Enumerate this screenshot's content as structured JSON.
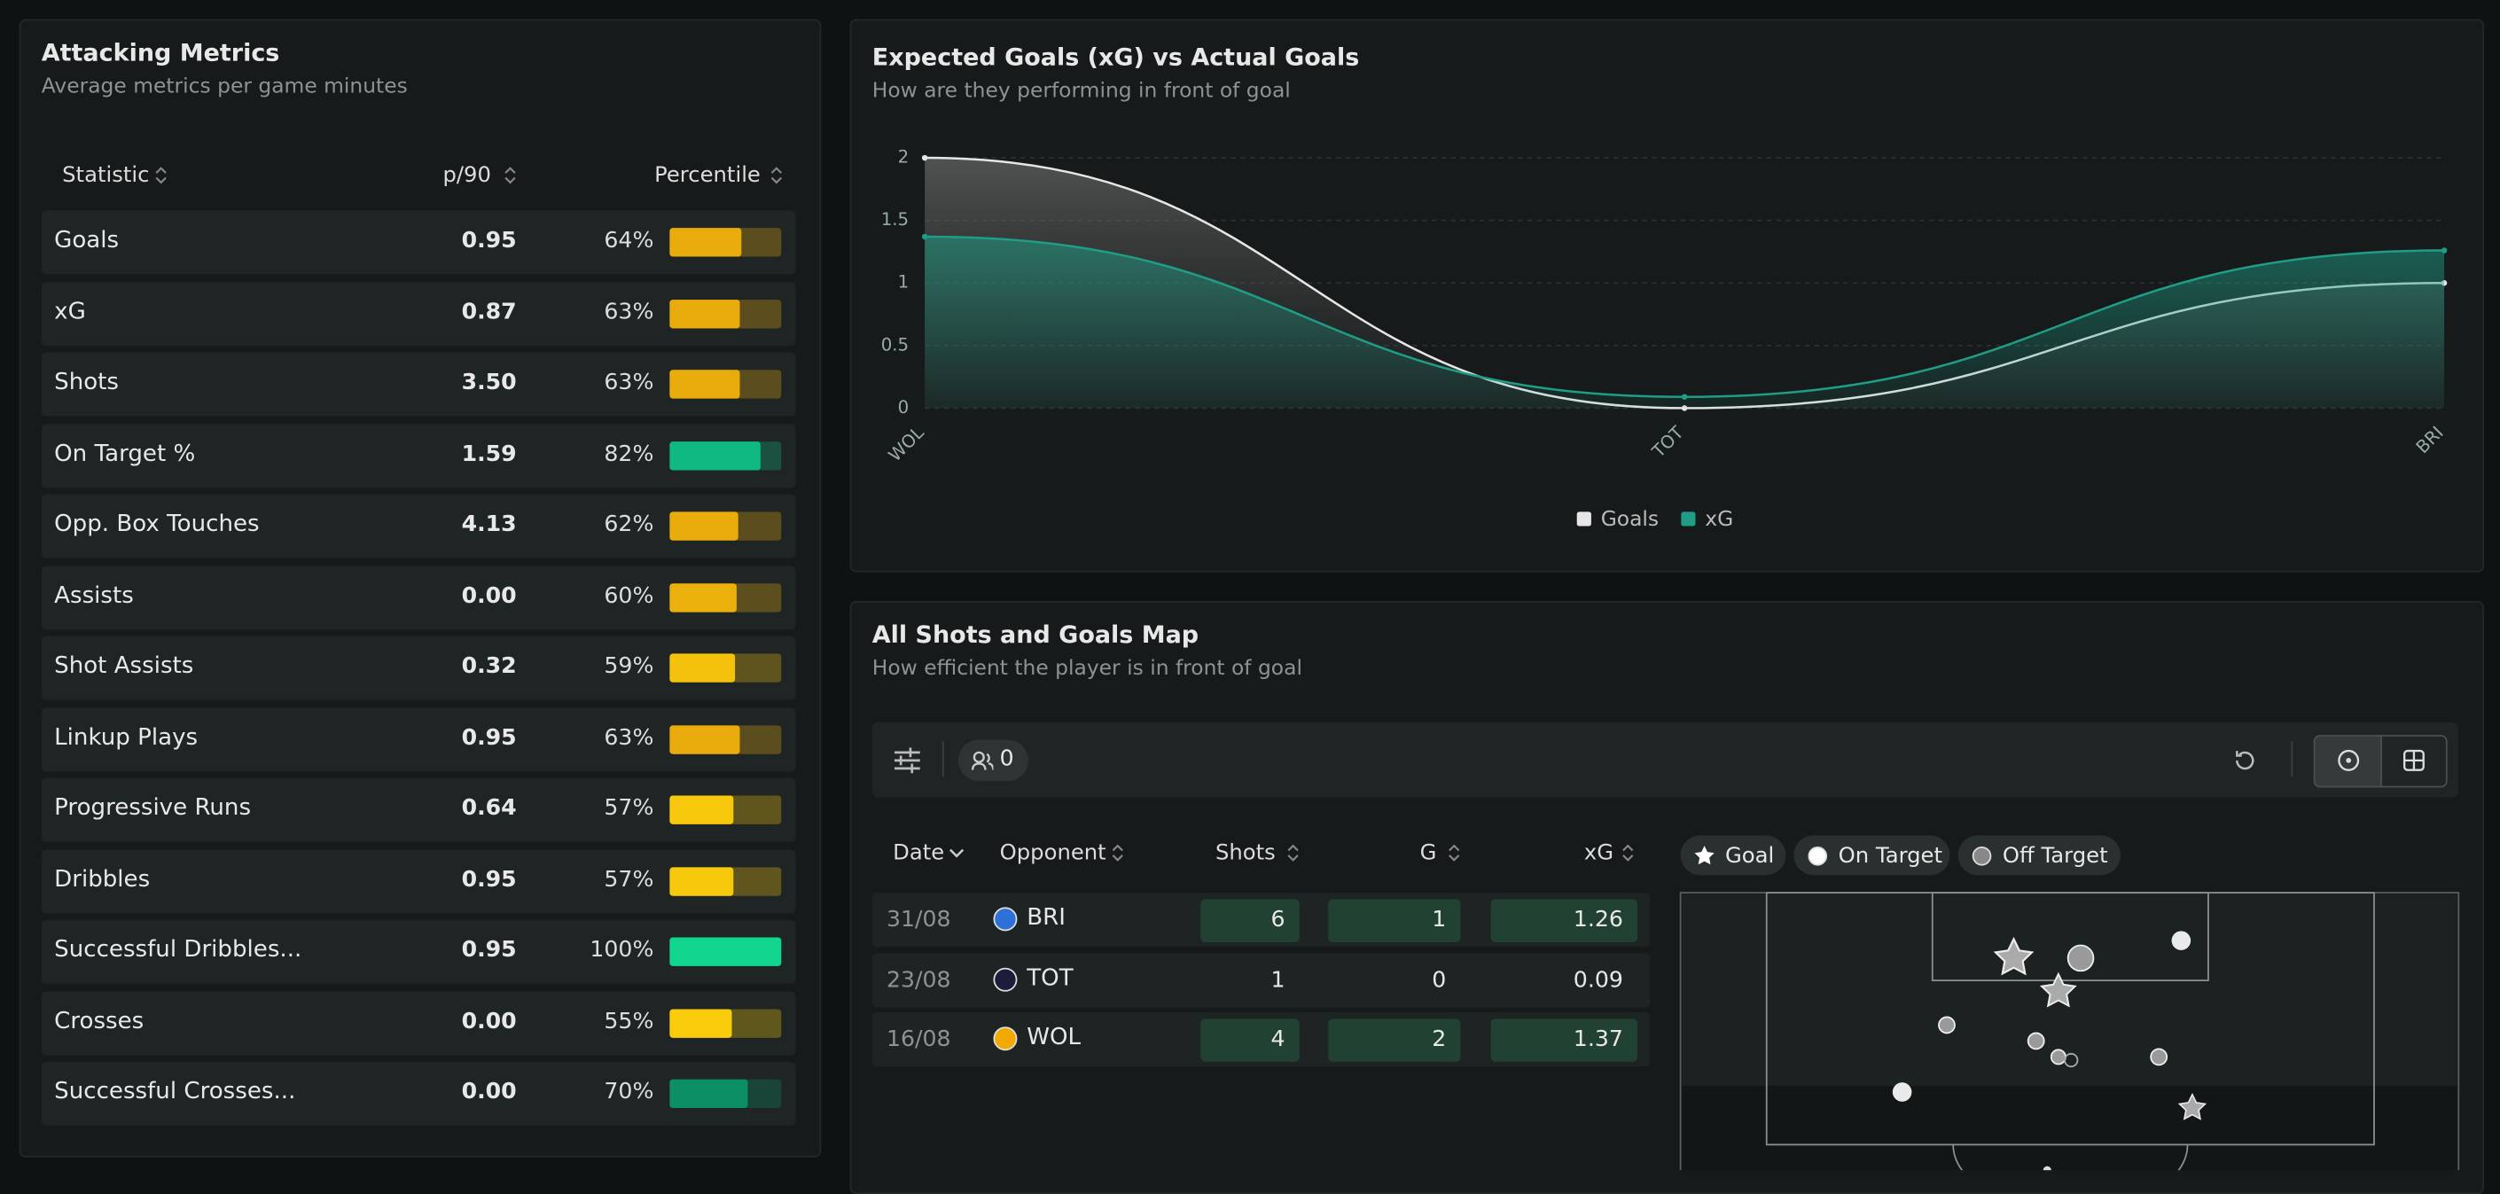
{
  "attacking": {
    "title": "Attacking Metrics",
    "subtitle": "Average metrics per game minutes",
    "headers": [
      "Statistic",
      "p/90",
      "Percentile"
    ],
    "rows": [
      {
        "label": "Goals",
        "p90": "0.95",
        "percentile": 64,
        "percentile_label": "64%",
        "color": "#e9ac0c"
      },
      {
        "label": "xG",
        "p90": "0.87",
        "percentile": 63,
        "percentile_label": "63%",
        "color": "#e9ac0c"
      },
      {
        "label": "Shots",
        "p90": "3.50",
        "percentile": 63,
        "percentile_label": "63%",
        "color": "#e9ac0c"
      },
      {
        "label": "On Target %",
        "p90": "1.59",
        "percentile": 82,
        "percentile_label": "82%",
        "color": "#10b981"
      },
      {
        "label": "Opp. Box Touches",
        "p90": "4.13",
        "percentile": 62,
        "percentile_label": "62%",
        "color": "#e9ac0c"
      },
      {
        "label": "Assists",
        "p90": "0.00",
        "percentile": 60,
        "percentile_label": "60%",
        "color": "#ecb00c"
      },
      {
        "label": "Shot Assists",
        "p90": "0.32",
        "percentile": 59,
        "percentile_label": "59%",
        "color": "#f4c20d"
      },
      {
        "label": "Linkup Plays",
        "p90": "0.95",
        "percentile": 63,
        "percentile_label": "63%",
        "color": "#e9ac0c"
      },
      {
        "label": "Progressive Runs",
        "p90": "0.64",
        "percentile": 57,
        "percentile_label": "57%",
        "color": "#f8c80c"
      },
      {
        "label": "Dribbles",
        "p90": "0.95",
        "percentile": 57,
        "percentile_label": "57%",
        "color": "#f8c80c"
      },
      {
        "label": "Successful Dribbles...",
        "p90": "0.95",
        "percentile": 100,
        "percentile_label": "100%",
        "color": "#12d58e"
      },
      {
        "label": "Crosses",
        "p90": "0.00",
        "percentile": 55,
        "percentile_label": "55%",
        "color": "#facc0c"
      },
      {
        "label": "Successful Crosses...",
        "p90": "0.00",
        "percentile": 70,
        "percentile_label": "70%",
        "color": "#0d8f66"
      }
    ]
  },
  "chart_data": {
    "type": "line",
    "title": "Expected Goals (xG) vs Actual Goals",
    "subtitle": "How are they performing in front of goal",
    "categories": [
      "WOL",
      "TOT",
      "BRI"
    ],
    "series": [
      {
        "name": "Goals",
        "color": "#e6e6e6",
        "values": [
          2,
          0,
          1
        ]
      },
      {
        "name": "xG",
        "color": "#1f9d86",
        "values": [
          1.37,
          0.09,
          1.26
        ]
      }
    ],
    "ylim": [
      0,
      2
    ],
    "yticks": [
      0,
      0.5,
      1,
      1.5,
      2
    ],
    "grid": true
  },
  "shots": {
    "title": "All Shots and Goals Map",
    "subtitle": "How efficient the player is in front of goal",
    "filter_count": "0",
    "headers": [
      "Date",
      "Opponent",
      "Shots",
      "G",
      "xG"
    ],
    "rows": [
      {
        "date": "31/08",
        "opponent": "BRI",
        "shots": 6,
        "goals": 1,
        "xg": 1.26
      },
      {
        "date": "23/08",
        "opponent": "TOT",
        "shots": 1,
        "goals": 0,
        "xg": 0.09
      },
      {
        "date": "16/08",
        "opponent": "WOL",
        "shots": 4,
        "goals": 2,
        "xg": 1.37
      }
    ],
    "legend": [
      "Goal",
      "On Target",
      "Off Target"
    ]
  }
}
